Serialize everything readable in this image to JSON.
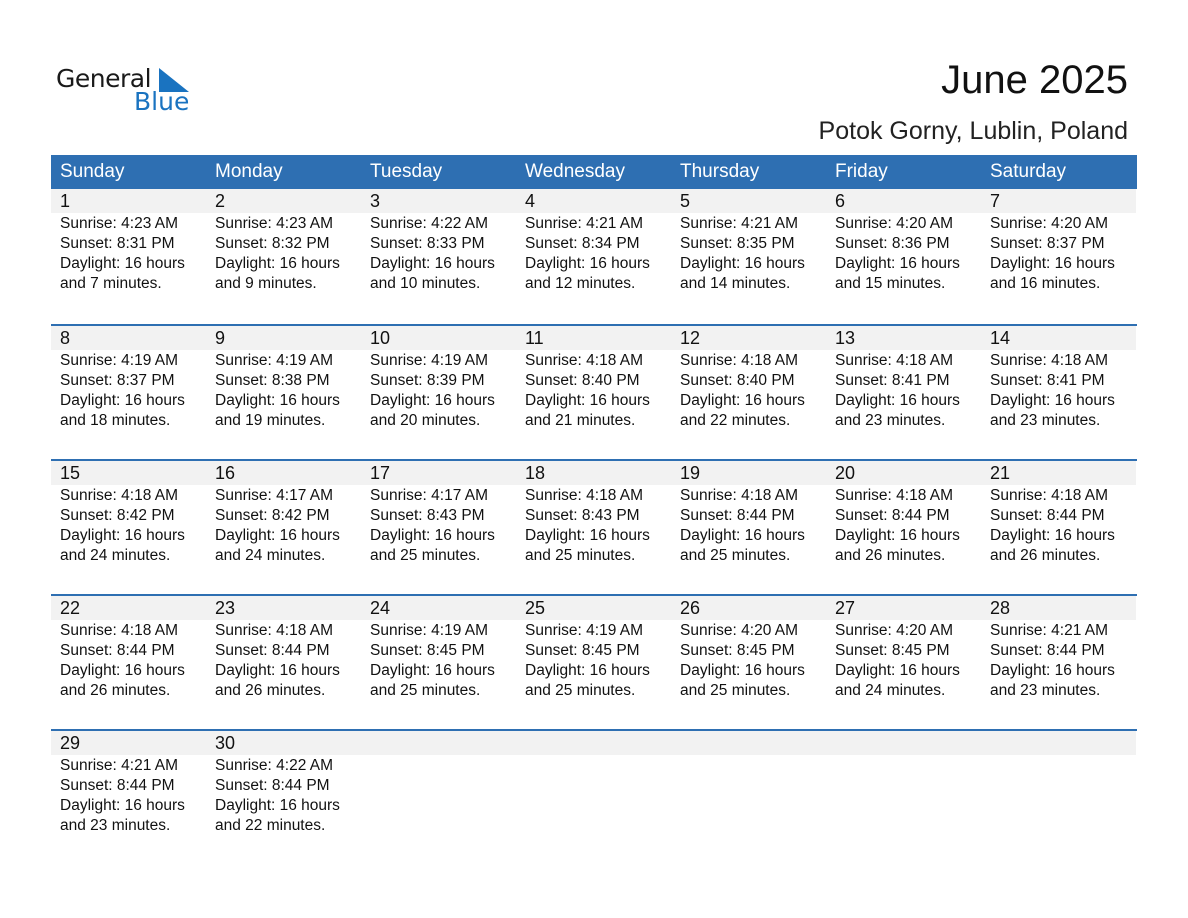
{
  "logo": {
    "line1": "General",
    "line2": "Blue"
  },
  "header": {
    "title": "June 2025",
    "location": "Potok Gorny, Lublin, Poland"
  },
  "colors": {
    "accent": "#2e6fb2",
    "band": "#f2f2f2"
  },
  "weekdays": [
    "Sunday",
    "Monday",
    "Tuesday",
    "Wednesday",
    "Thursday",
    "Friday",
    "Saturday"
  ],
  "days": [
    {
      "day": "1",
      "sunrise": "Sunrise: 4:23 AM",
      "sunset": "Sunset: 8:31 PM",
      "daylight": "Daylight: 16 hours",
      "minutes": "and 7 minutes."
    },
    {
      "day": "2",
      "sunrise": "Sunrise: 4:23 AM",
      "sunset": "Sunset: 8:32 PM",
      "daylight": "Daylight: 16 hours",
      "minutes": "and 9 minutes."
    },
    {
      "day": "3",
      "sunrise": "Sunrise: 4:22 AM",
      "sunset": "Sunset: 8:33 PM",
      "daylight": "Daylight: 16 hours",
      "minutes": "and 10 minutes."
    },
    {
      "day": "4",
      "sunrise": "Sunrise: 4:21 AM",
      "sunset": "Sunset: 8:34 PM",
      "daylight": "Daylight: 16 hours",
      "minutes": "and 12 minutes."
    },
    {
      "day": "5",
      "sunrise": "Sunrise: 4:21 AM",
      "sunset": "Sunset: 8:35 PM",
      "daylight": "Daylight: 16 hours",
      "minutes": "and 14 minutes."
    },
    {
      "day": "6",
      "sunrise": "Sunrise: 4:20 AM",
      "sunset": "Sunset: 8:36 PM",
      "daylight": "Daylight: 16 hours",
      "minutes": "and 15 minutes."
    },
    {
      "day": "7",
      "sunrise": "Sunrise: 4:20 AM",
      "sunset": "Sunset: 8:37 PM",
      "daylight": "Daylight: 16 hours",
      "minutes": "and 16 minutes."
    },
    {
      "day": "8",
      "sunrise": "Sunrise: 4:19 AM",
      "sunset": "Sunset: 8:37 PM",
      "daylight": "Daylight: 16 hours",
      "minutes": "and 18 minutes."
    },
    {
      "day": "9",
      "sunrise": "Sunrise: 4:19 AM",
      "sunset": "Sunset: 8:38 PM",
      "daylight": "Daylight: 16 hours",
      "minutes": "and 19 minutes."
    },
    {
      "day": "10",
      "sunrise": "Sunrise: 4:19 AM",
      "sunset": "Sunset: 8:39 PM",
      "daylight": "Daylight: 16 hours",
      "minutes": "and 20 minutes."
    },
    {
      "day": "11",
      "sunrise": "Sunrise: 4:18 AM",
      "sunset": "Sunset: 8:40 PM",
      "daylight": "Daylight: 16 hours",
      "minutes": "and 21 minutes."
    },
    {
      "day": "12",
      "sunrise": "Sunrise: 4:18 AM",
      "sunset": "Sunset: 8:40 PM",
      "daylight": "Daylight: 16 hours",
      "minutes": "and 22 minutes."
    },
    {
      "day": "13",
      "sunrise": "Sunrise: 4:18 AM",
      "sunset": "Sunset: 8:41 PM",
      "daylight": "Daylight: 16 hours",
      "minutes": "and 23 minutes."
    },
    {
      "day": "14",
      "sunrise": "Sunrise: 4:18 AM",
      "sunset": "Sunset: 8:41 PM",
      "daylight": "Daylight: 16 hours",
      "minutes": "and 23 minutes."
    },
    {
      "day": "15",
      "sunrise": "Sunrise: 4:18 AM",
      "sunset": "Sunset: 8:42 PM",
      "daylight": "Daylight: 16 hours",
      "minutes": "and 24 minutes."
    },
    {
      "day": "16",
      "sunrise": "Sunrise: 4:17 AM",
      "sunset": "Sunset: 8:42 PM",
      "daylight": "Daylight: 16 hours",
      "minutes": "and 24 minutes."
    },
    {
      "day": "17",
      "sunrise": "Sunrise: 4:17 AM",
      "sunset": "Sunset: 8:43 PM",
      "daylight": "Daylight: 16 hours",
      "minutes": "and 25 minutes."
    },
    {
      "day": "18",
      "sunrise": "Sunrise: 4:18 AM",
      "sunset": "Sunset: 8:43 PM",
      "daylight": "Daylight: 16 hours",
      "minutes": "and 25 minutes."
    },
    {
      "day": "19",
      "sunrise": "Sunrise: 4:18 AM",
      "sunset": "Sunset: 8:44 PM",
      "daylight": "Daylight: 16 hours",
      "minutes": "and 25 minutes."
    },
    {
      "day": "20",
      "sunrise": "Sunrise: 4:18 AM",
      "sunset": "Sunset: 8:44 PM",
      "daylight": "Daylight: 16 hours",
      "minutes": "and 26 minutes."
    },
    {
      "day": "21",
      "sunrise": "Sunrise: 4:18 AM",
      "sunset": "Sunset: 8:44 PM",
      "daylight": "Daylight: 16 hours",
      "minutes": "and 26 minutes."
    },
    {
      "day": "22",
      "sunrise": "Sunrise: 4:18 AM",
      "sunset": "Sunset: 8:44 PM",
      "daylight": "Daylight: 16 hours",
      "minutes": "and 26 minutes."
    },
    {
      "day": "23",
      "sunrise": "Sunrise: 4:18 AM",
      "sunset": "Sunset: 8:44 PM",
      "daylight": "Daylight: 16 hours",
      "minutes": "and 26 minutes."
    },
    {
      "day": "24",
      "sunrise": "Sunrise: 4:19 AM",
      "sunset": "Sunset: 8:45 PM",
      "daylight": "Daylight: 16 hours",
      "minutes": "and 25 minutes."
    },
    {
      "day": "25",
      "sunrise": "Sunrise: 4:19 AM",
      "sunset": "Sunset: 8:45 PM",
      "daylight": "Daylight: 16 hours",
      "minutes": "and 25 minutes."
    },
    {
      "day": "26",
      "sunrise": "Sunrise: 4:20 AM",
      "sunset": "Sunset: 8:45 PM",
      "daylight": "Daylight: 16 hours",
      "minutes": "and 25 minutes."
    },
    {
      "day": "27",
      "sunrise": "Sunrise: 4:20 AM",
      "sunset": "Sunset: 8:45 PM",
      "daylight": "Daylight: 16 hours",
      "minutes": "and 24 minutes."
    },
    {
      "day": "28",
      "sunrise": "Sunrise: 4:21 AM",
      "sunset": "Sunset: 8:44 PM",
      "daylight": "Daylight: 16 hours",
      "minutes": "and 23 minutes."
    },
    {
      "day": "29",
      "sunrise": "Sunrise: 4:21 AM",
      "sunset": "Sunset: 8:44 PM",
      "daylight": "Daylight: 16 hours",
      "minutes": "and 23 minutes."
    },
    {
      "day": "30",
      "sunrise": "Sunrise: 4:22 AM",
      "sunset": "Sunset: 8:44 PM",
      "daylight": "Daylight: 16 hours",
      "minutes": "and 22 minutes."
    }
  ]
}
